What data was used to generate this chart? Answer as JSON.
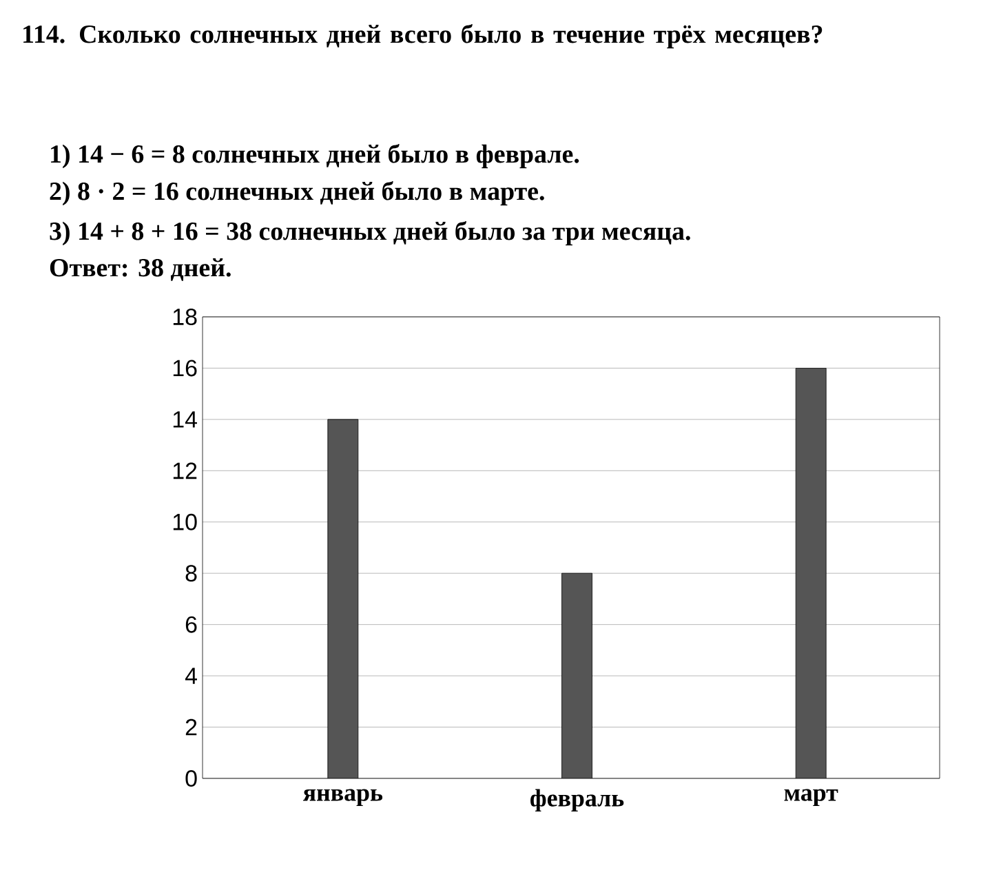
{
  "chart_data": {
    "type": "bar",
    "title": "**114.** Сколько солнечных дней всего было в течение трёх месяцев?",
    "annotations": [
      "1) 14 − 6 = 8 солнечных дней было в феврале.",
      "2) 8 · 2 = 16 солнечных дней было в марте.",
      "3) 14 + 8 + 16 = 38 солнечных дней было за три месяца.",
      "Ответ: 38 дней."
    ],
    "categories": [
      "январь",
      "февраль",
      "март"
    ],
    "values": [
      14,
      8,
      16
    ],
    "color": "#555555",
    "ylim": [
      0,
      18
    ],
    "yticks": [
      0,
      2,
      4,
      6,
      8,
      10,
      12,
      14,
      16,
      18
    ],
    "grid": "y"
  }
}
